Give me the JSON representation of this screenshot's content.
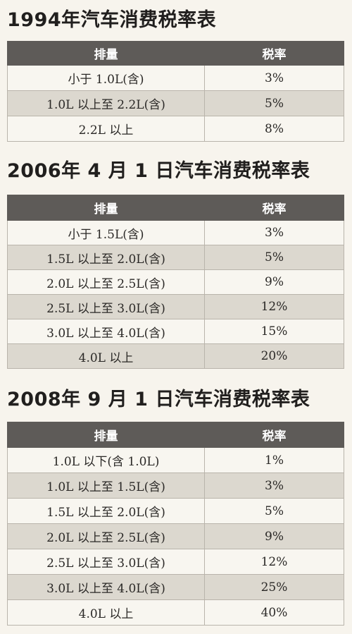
{
  "tables": [
    {
      "title": "1994年汽车消费税率表",
      "headers": [
        "排量",
        "税率"
      ],
      "rows": [
        [
          "小于 1.0L(含)",
          "3%"
        ],
        [
          "1.0L 以上至 2.2L(含)",
          "5%"
        ],
        [
          "2.2L 以上",
          "8%"
        ]
      ]
    },
    {
      "title": "2006年 4 月 1 日汽车消费税率表",
      "headers": [
        "排量",
        "税率"
      ],
      "rows": [
        [
          "小于 1.5L(含)",
          "3%"
        ],
        [
          "1.5L 以上至 2.0L(含)",
          "5%"
        ],
        [
          "2.0L 以上至 2.5L(含)",
          "9%"
        ],
        [
          "2.5L 以上至 3.0L(含)",
          "12%"
        ],
        [
          "3.0L 以上至 4.0L(含)",
          "15%"
        ],
        [
          "4.0L 以上",
          "20%"
        ]
      ]
    },
    {
      "title": "2008年 9 月 1 日汽车消费税率表",
      "headers": [
        "排量",
        "税率"
      ],
      "rows": [
        [
          "1.0L 以下(含 1.0L)",
          "1%"
        ],
        [
          "1.0L 以上至 1.5L(含)",
          "3%"
        ],
        [
          "1.5L 以上至 2.0L(含)",
          "5%"
        ],
        [
          "2.0L 以上至 2.5L(含)",
          "9%"
        ],
        [
          "2.5L 以上至 3.0L(含)",
          "12%"
        ],
        [
          "3.0L 以上至 4.0L(含)",
          "25%"
        ],
        [
          "4.0L 以上",
          "40%"
        ]
      ]
    }
  ]
}
